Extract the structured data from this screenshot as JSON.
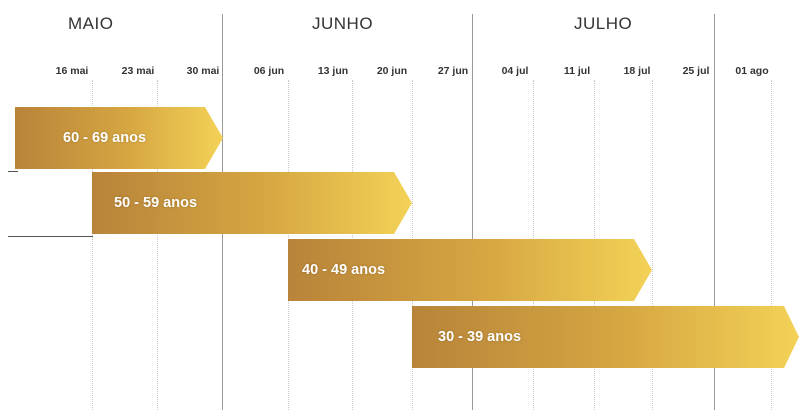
{
  "months": [
    "MAIO",
    "JUNHO",
    "JULHO"
  ],
  "weeks": [
    "16 mai",
    "23 mai",
    "30 mai",
    "06 jun",
    "13 jun",
    "20 jun",
    "27 jun",
    "04 jul",
    "11 jul",
    "18 jul",
    "25 jul",
    "01 ago"
  ],
  "bars": [
    {
      "label": "60 - 69 anos",
      "start_week": "16 mai",
      "end_week": "30 mai"
    },
    {
      "label": "50 - 59 anos",
      "start_week": "23 mai",
      "end_week": "20 jun"
    },
    {
      "label": "40 - 49 anos",
      "start_week": "06 jun",
      "end_week": "18 jul"
    },
    {
      "label": "30 - 39 anos",
      "start_week": "27 jun",
      "end_week": "01 ago"
    }
  ],
  "colors": {
    "bar_start": "#b8843a",
    "bar_mid": "#d6a742",
    "bar_end": "#f3d257",
    "month_line": "#9a9a9a",
    "week_line": "#c8c8c8",
    "text": "#333333"
  }
}
